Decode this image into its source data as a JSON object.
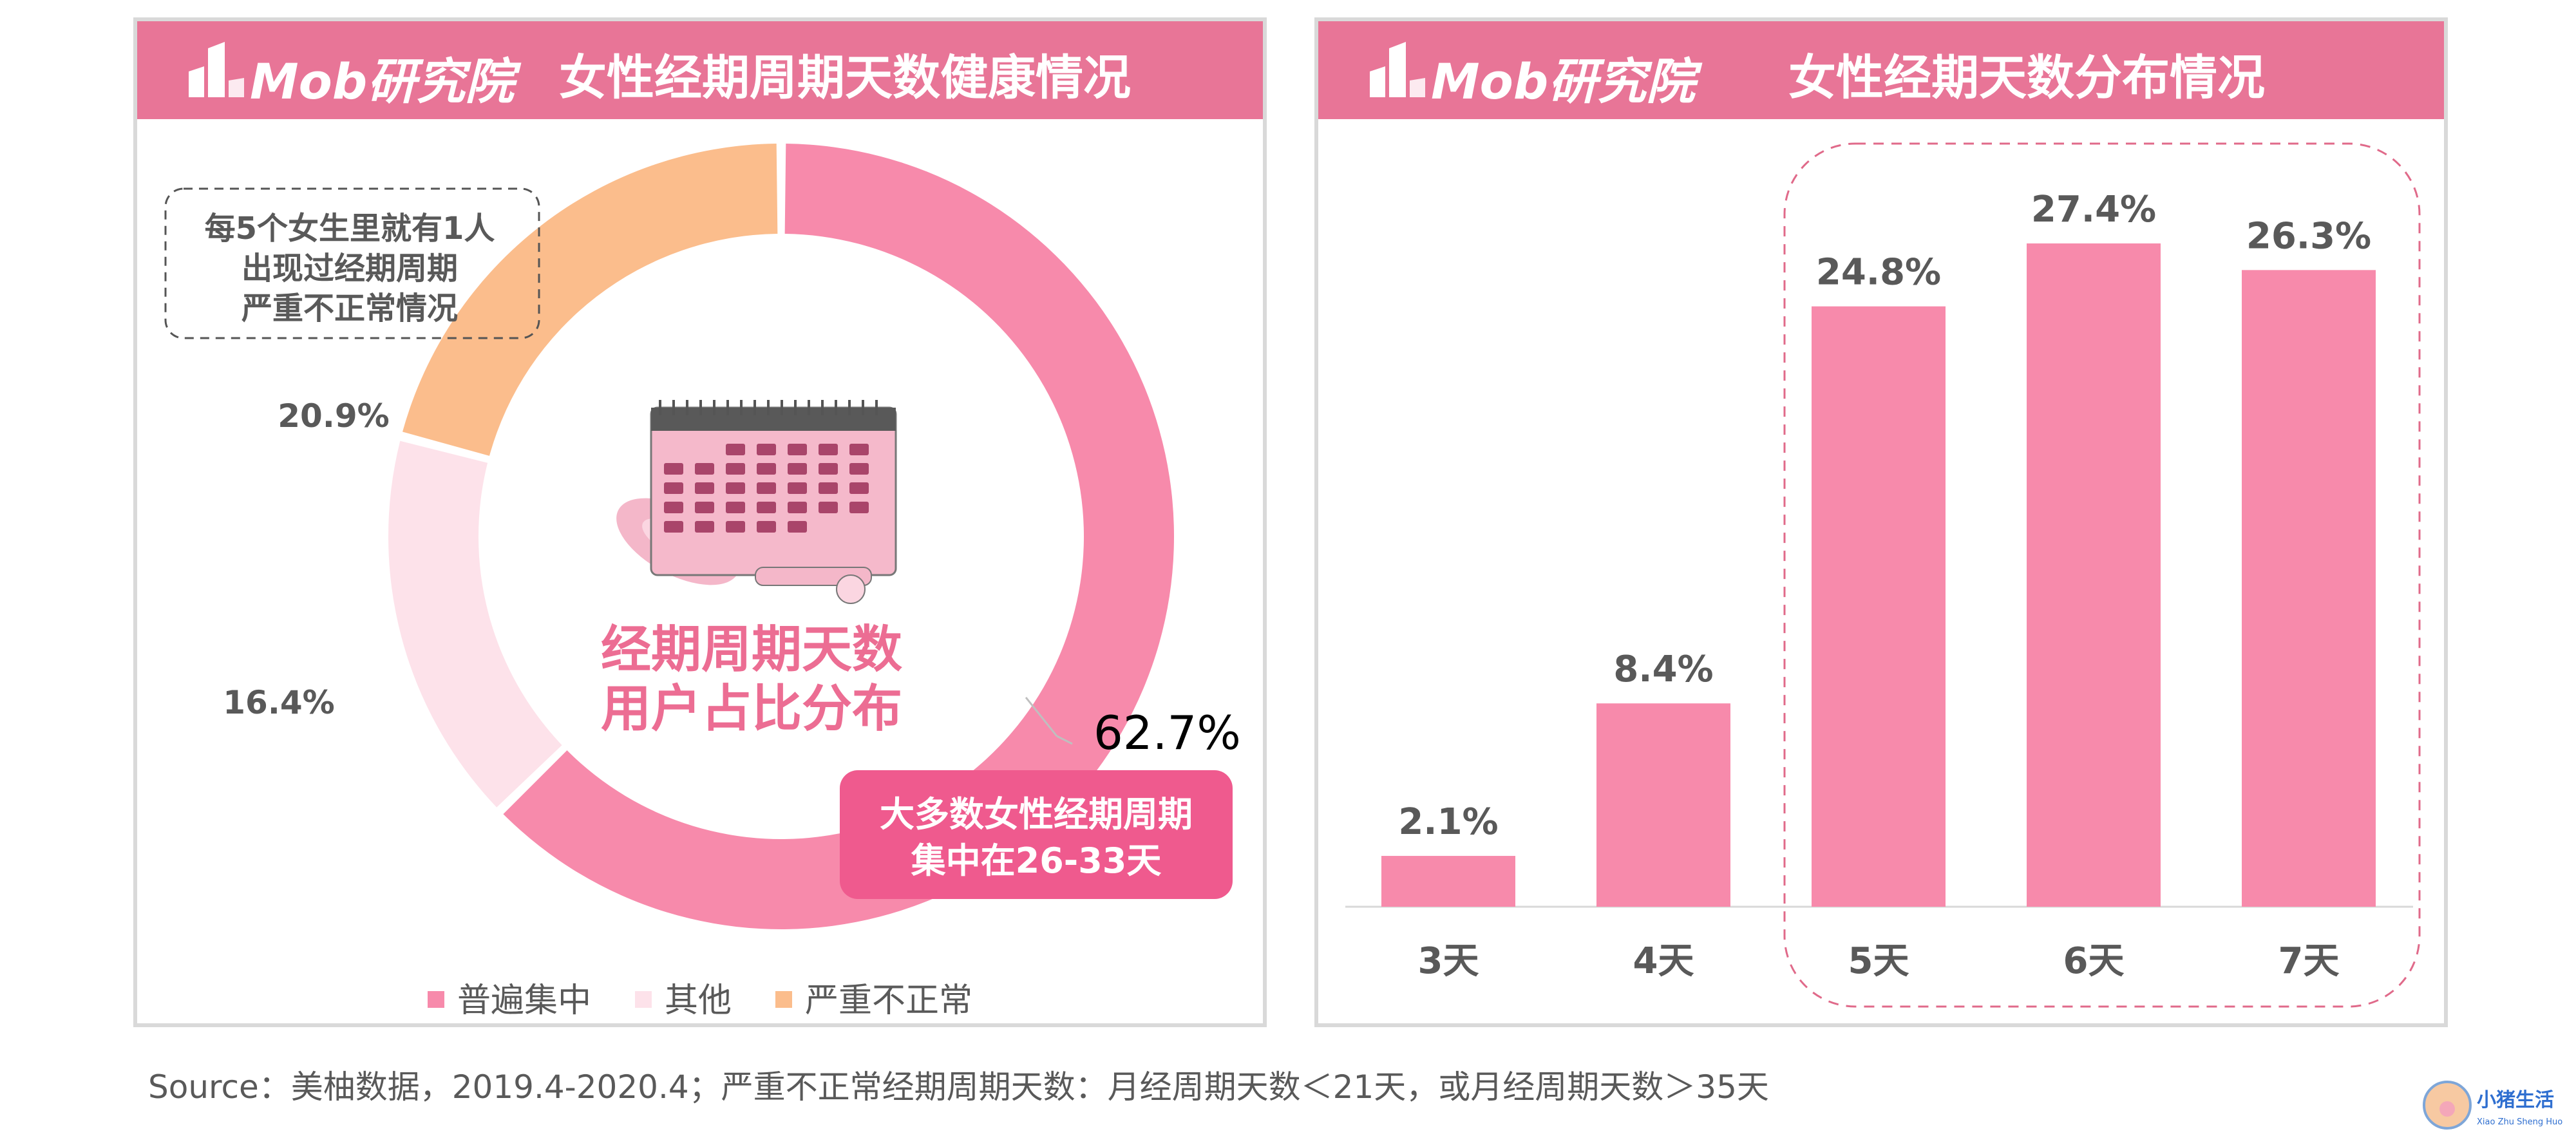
{
  "left_panel": {
    "logo_text": "Mob研究院",
    "title": "女性经期周期天数健康情况",
    "callout_text": [
      "每5个女生里就有1人",
      "出现过经期周期",
      "严重不正常情况"
    ],
    "center_label": [
      "经期周期天数",
      "用户占比分布"
    ],
    "highlight_text": [
      "大多数女性经期周期",
      "集中在26-33天"
    ]
  },
  "right_panel": {
    "logo_text": "Mob研究院",
    "title": "女性经期天数分布情况"
  },
  "chart_data": [
    {
      "type": "pie",
      "style": "donut",
      "title": "女性经期周期天数健康情况",
      "labels": [
        "普遍集中",
        "其他",
        "严重不正常"
      ],
      "values": [
        62.7,
        16.4,
        20.9
      ],
      "value_labels": [
        "62.7%",
        "16.4%",
        "20.9%"
      ],
      "colors": [
        "#f78aab",
        "#fde2ea",
        "#fbbd8c"
      ],
      "legend_position": "bottom"
    },
    {
      "type": "bar",
      "title": "女性经期天数分布情况",
      "categories": [
        "3天",
        "4天",
        "5天",
        "6天",
        "7天"
      ],
      "values": [
        2.1,
        8.4,
        24.8,
        27.4,
        26.3
      ],
      "value_labels": [
        "2.1%",
        "8.4%",
        "24.8%",
        "27.4%",
        "26.3%"
      ],
      "color": "#f78aab",
      "highlighted_categories": [
        "5天",
        "6天",
        "7天"
      ],
      "ylim": [
        0,
        28
      ]
    }
  ],
  "footer": {
    "source": "Source：美柚数据，2019.4-2020.4；严重不正常经期周期天数：月经周期天数＜21天，或月经周期天数＞35天"
  },
  "badge": {
    "title": "小猪生活",
    "subtitle": "Xiao Zhu Sheng Huo"
  }
}
